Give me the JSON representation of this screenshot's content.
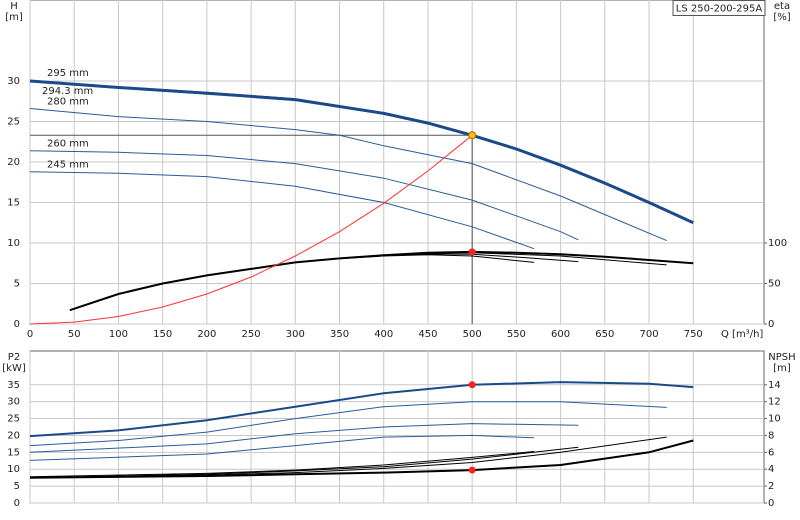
{
  "chart_data": [
    {
      "type": "line",
      "title": "LS 250-200-295A",
      "xlabel": "Q [m³/h]",
      "ylabel": [
        "H",
        "[m]"
      ],
      "y2label": [
        "eta",
        "[%]"
      ],
      "xlim": [
        0,
        830
      ],
      "ylim": [
        0,
        40
      ],
      "y2lim": [
        0,
        400
      ],
      "xticks": [
        0,
        50,
        100,
        150,
        200,
        250,
        300,
        350,
        400,
        450,
        500,
        550,
        600,
        650,
        700,
        750
      ],
      "yticks": [
        0,
        5,
        10,
        15,
        20,
        25,
        30
      ],
      "y2ticks": [
        0,
        50,
        100
      ],
      "grid": true,
      "series": [
        {
          "label": "295 mm",
          "color": "#2a5b9c",
          "line_width": 1,
          "x": [
            0,
            100,
            200,
            300,
            400,
            450,
            500,
            550,
            600,
            650,
            700,
            750
          ],
          "values": [
            30.1,
            29.3,
            28.6,
            27.8,
            26.1,
            24.9,
            23.4,
            21.7,
            19.7,
            17.5,
            15.1,
            12.6
          ]
        },
        {
          "label": "294.3 mm",
          "color": "#1b4a8a",
          "line_width": 3,
          "x": [
            0,
            100,
            200,
            300,
            400,
            450,
            500,
            550,
            600,
            650,
            700,
            750
          ],
          "values": [
            30,
            29.2,
            28.5,
            27.7,
            26,
            24.8,
            23.3,
            21.6,
            19.6,
            17.4,
            15,
            12.5
          ]
        },
        {
          "label": "280 mm",
          "color": "#2a5b9c",
          "line_width": 1,
          "x": [
            0,
            100,
            200,
            300,
            350,
            400,
            500,
            600,
            720
          ],
          "values": [
            26.6,
            25.6,
            25,
            24,
            23.3,
            22,
            19.8,
            15.8,
            10.3
          ]
        },
        {
          "label": "260 mm",
          "color": "#2a5b9c",
          "line_width": 1,
          "x": [
            0,
            100,
            200,
            300,
            400,
            500,
            600,
            620
          ],
          "values": [
            21.4,
            21.2,
            20.8,
            19.8,
            18,
            15.3,
            11.4,
            10.4
          ]
        },
        {
          "label": "245 mm",
          "color": "#2a5b9c",
          "line_width": 1,
          "x": [
            0,
            100,
            200,
            300,
            400,
            500,
            570
          ],
          "values": [
            18.8,
            18.6,
            18.2,
            17,
            15,
            12,
            9.3
          ]
        },
        {
          "axis": "y2",
          "color": "#000000",
          "line_width": 2,
          "x": [
            45,
            100,
            150,
            200,
            250,
            300,
            350,
            400,
            450,
            500,
            550,
            600,
            650,
            700,
            750
          ],
          "values": [
            17,
            37,
            50,
            60,
            68,
            76,
            81,
            85,
            88,
            89,
            88,
            86,
            83,
            79,
            75
          ]
        },
        {
          "axis": "y2",
          "color": "#000000",
          "line_width": 1,
          "x": [
            350,
            400,
            450,
            500,
            600,
            720
          ],
          "values": [
            81,
            85,
            87.5,
            88,
            84,
            73
          ]
        },
        {
          "axis": "y2",
          "color": "#000000",
          "line_width": 1,
          "x": [
            350,
            400,
            450,
            500,
            560,
            620
          ],
          "values": [
            81,
            84.5,
            86.5,
            86,
            82,
            77
          ]
        },
        {
          "axis": "y2",
          "color": "#000000",
          "line_width": 1,
          "x": [
            350,
            400,
            450,
            500,
            570
          ],
          "values": [
            80.5,
            84,
            85.5,
            84,
            76
          ]
        },
        {
          "color": "#ff3030",
          "line_width": 1,
          "x": [
            0,
            50,
            100,
            150,
            200,
            250,
            300,
            350,
            400,
            450,
            500
          ],
          "values": [
            0,
            0.23,
            0.93,
            2.1,
            3.7,
            5.8,
            8.4,
            11.4,
            14.9,
            18.9,
            23.3
          ]
        }
      ],
      "points": [
        {
          "x": 500,
          "y": 23.3,
          "color": "#f5c400"
        },
        {
          "x": 500,
          "y": 89,
          "axis": "y2",
          "color": "#ff2020"
        }
      ]
    },
    {
      "type": "line",
      "ylabel": [
        "P2",
        "[kW]"
      ],
      "y2label": [
        "NPSH",
        "[m]"
      ],
      "xlim": [
        0,
        830
      ],
      "ylim": [
        0,
        45
      ],
      "y2lim": [
        0,
        18
      ],
      "xticks": [
        0,
        50,
        100,
        150,
        200,
        250,
        300,
        350,
        400,
        450,
        500,
        550,
        600,
        650,
        700,
        750
      ],
      "yticks": [
        0,
        5,
        10,
        15,
        20,
        25,
        30,
        35
      ],
      "y2ticks": [
        0,
        2,
        4,
        6,
        8,
        10,
        12,
        14
      ],
      "grid": true,
      "series": [
        {
          "color": "#1b4a8a",
          "line_width": 2,
          "x": [
            0,
            100,
            200,
            300,
            400,
            500,
            600,
            700,
            750
          ],
          "values": [
            19.8,
            21.5,
            24.5,
            28.5,
            32.5,
            35,
            35.8,
            35.3,
            34.3
          ]
        },
        {
          "color": "#2a5b9c",
          "line_width": 1,
          "x": [
            0,
            100,
            200,
            300,
            400,
            500,
            600,
            720
          ],
          "values": [
            17,
            18.5,
            21,
            25,
            28.5,
            30,
            30,
            28.3
          ]
        },
        {
          "color": "#2a5b9c",
          "line_width": 1,
          "x": [
            0,
            200,
            300,
            400,
            500,
            620
          ],
          "values": [
            15,
            17.5,
            20.5,
            22.5,
            23.5,
            23
          ]
        },
        {
          "color": "#2a5b9c",
          "line_width": 1,
          "x": [
            0,
            200,
            300,
            400,
            500,
            570
          ],
          "values": [
            12.6,
            14.5,
            17,
            19.5,
            20,
            19.3
          ]
        },
        {
          "axis": "y2",
          "color": "#000000",
          "line_width": 2,
          "x": [
            0,
            200,
            300,
            400,
            500,
            600,
            700,
            750
          ],
          "values": [
            3,
            3.2,
            3.4,
            3.6,
            3.9,
            4.5,
            6,
            7.4
          ]
        },
        {
          "axis": "y2",
          "color": "#000000",
          "line_width": 1,
          "x": [
            0,
            200,
            300,
            400,
            500,
            600,
            720
          ],
          "values": [
            3,
            3.3,
            3.6,
            4.1,
            4.8,
            6,
            7.8
          ]
        },
        {
          "axis": "y2",
          "color": "#000000",
          "line_width": 1,
          "x": [
            0,
            200,
            300,
            400,
            500,
            620
          ],
          "values": [
            3,
            3.4,
            3.8,
            4.3,
            5.2,
            6.6
          ]
        },
        {
          "axis": "y2",
          "color": "#000000",
          "line_width": 1,
          "x": [
            0,
            200,
            300,
            400,
            500,
            570
          ],
          "values": [
            3.1,
            3.5,
            3.9,
            4.5,
            5.4,
            6.1
          ]
        }
      ],
      "points": [
        {
          "x": 500,
          "y": 35,
          "color": "#ff2020"
        },
        {
          "x": 500,
          "y": 3.9,
          "axis": "y2",
          "color": "#ff2020"
        }
      ]
    }
  ]
}
